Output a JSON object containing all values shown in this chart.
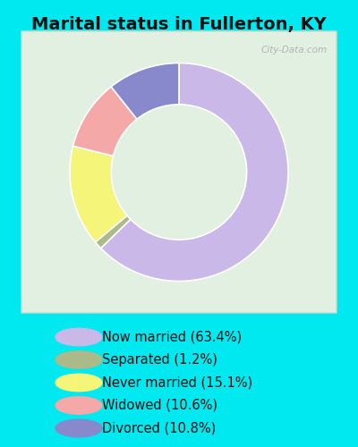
{
  "title": "Marital status in Fullerton, KY",
  "slices": [
    63.4,
    1.2,
    15.1,
    10.6,
    10.8
  ],
  "labels": [
    "Now married (63.4%)",
    "Separated (1.2%)",
    "Never married (15.1%)",
    "Widowed (10.6%)",
    "Divorced (10.8%)"
  ],
  "colors": [
    "#c9b8e8",
    "#aaba88",
    "#f5f57a",
    "#f4a8a8",
    "#8888cc"
  ],
  "start_angle": 90,
  "bg_color_cyan": "#00e8f0",
  "bg_color_chart": "#e8f5e8",
  "watermark": "City-Data.com",
  "title_fontsize": 14,
  "legend_fontsize": 10.5,
  "donut_width": 0.38
}
